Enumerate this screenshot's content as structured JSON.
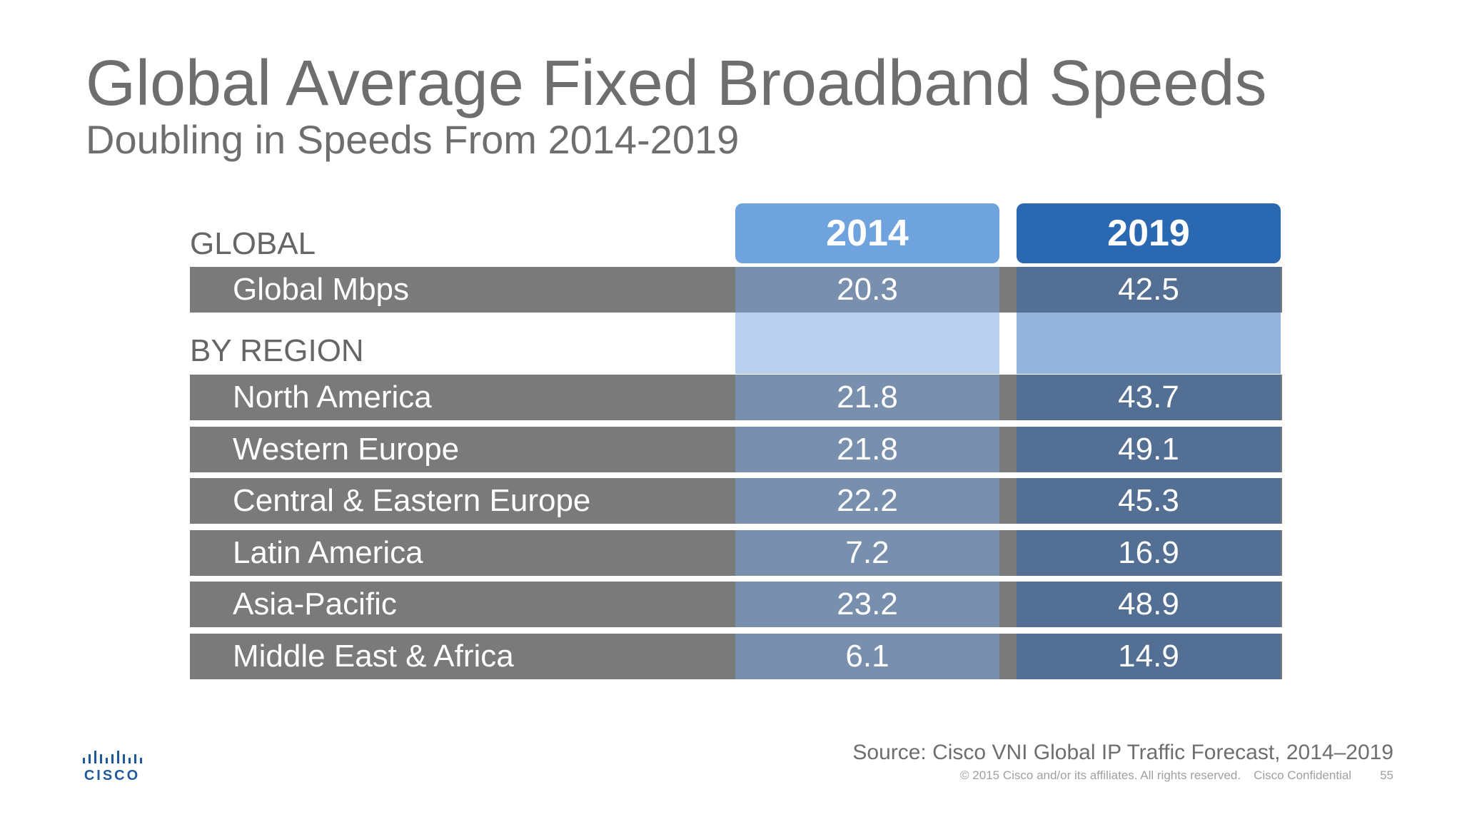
{
  "header": {
    "title": "Global Average Fixed Broadband Speeds",
    "subtitle": "Doubling in Speeds From 2014-2019"
  },
  "chart_data": {
    "type": "table",
    "columns": [
      "2014",
      "2019"
    ],
    "sections": [
      {
        "name": "GLOBAL",
        "rows": [
          {
            "label": "Global Mbps",
            "values": [
              20.3,
              42.5
            ]
          }
        ]
      },
      {
        "name": "BY REGION",
        "rows": [
          {
            "label": "North America",
            "values": [
              21.8,
              43.7
            ]
          },
          {
            "label": "Western Europe",
            "values": [
              21.8,
              49.1
            ]
          },
          {
            "label": "Central & Eastern Europe",
            "values": [
              22.2,
              45.3
            ]
          },
          {
            "label": "Latin America",
            "values": [
              7.2,
              16.9
            ]
          },
          {
            "label": "Asia-Pacific",
            "values": [
              23.2,
              48.9
            ]
          },
          {
            "label": "Middle East & Africa",
            "values": [
              6.1,
              14.9
            ]
          }
        ]
      }
    ]
  },
  "source": "Source: Cisco VNI Global IP Traffic Forecast, 2014–2019",
  "footer": {
    "copyright": "© 2015  Cisco and/or its affiliates. All rights reserved.",
    "confidential": "Cisco Confidential",
    "page": "55"
  },
  "logo": {
    "text": "CISCO",
    "color": "#1f5a9d"
  },
  "colors": {
    "header_2014": "#6fa3de",
    "header_2019": "#2a68b1",
    "row_label": "#7a7a7a",
    "cell_2014": "#7890ad",
    "cell_2019": "#536f94"
  }
}
